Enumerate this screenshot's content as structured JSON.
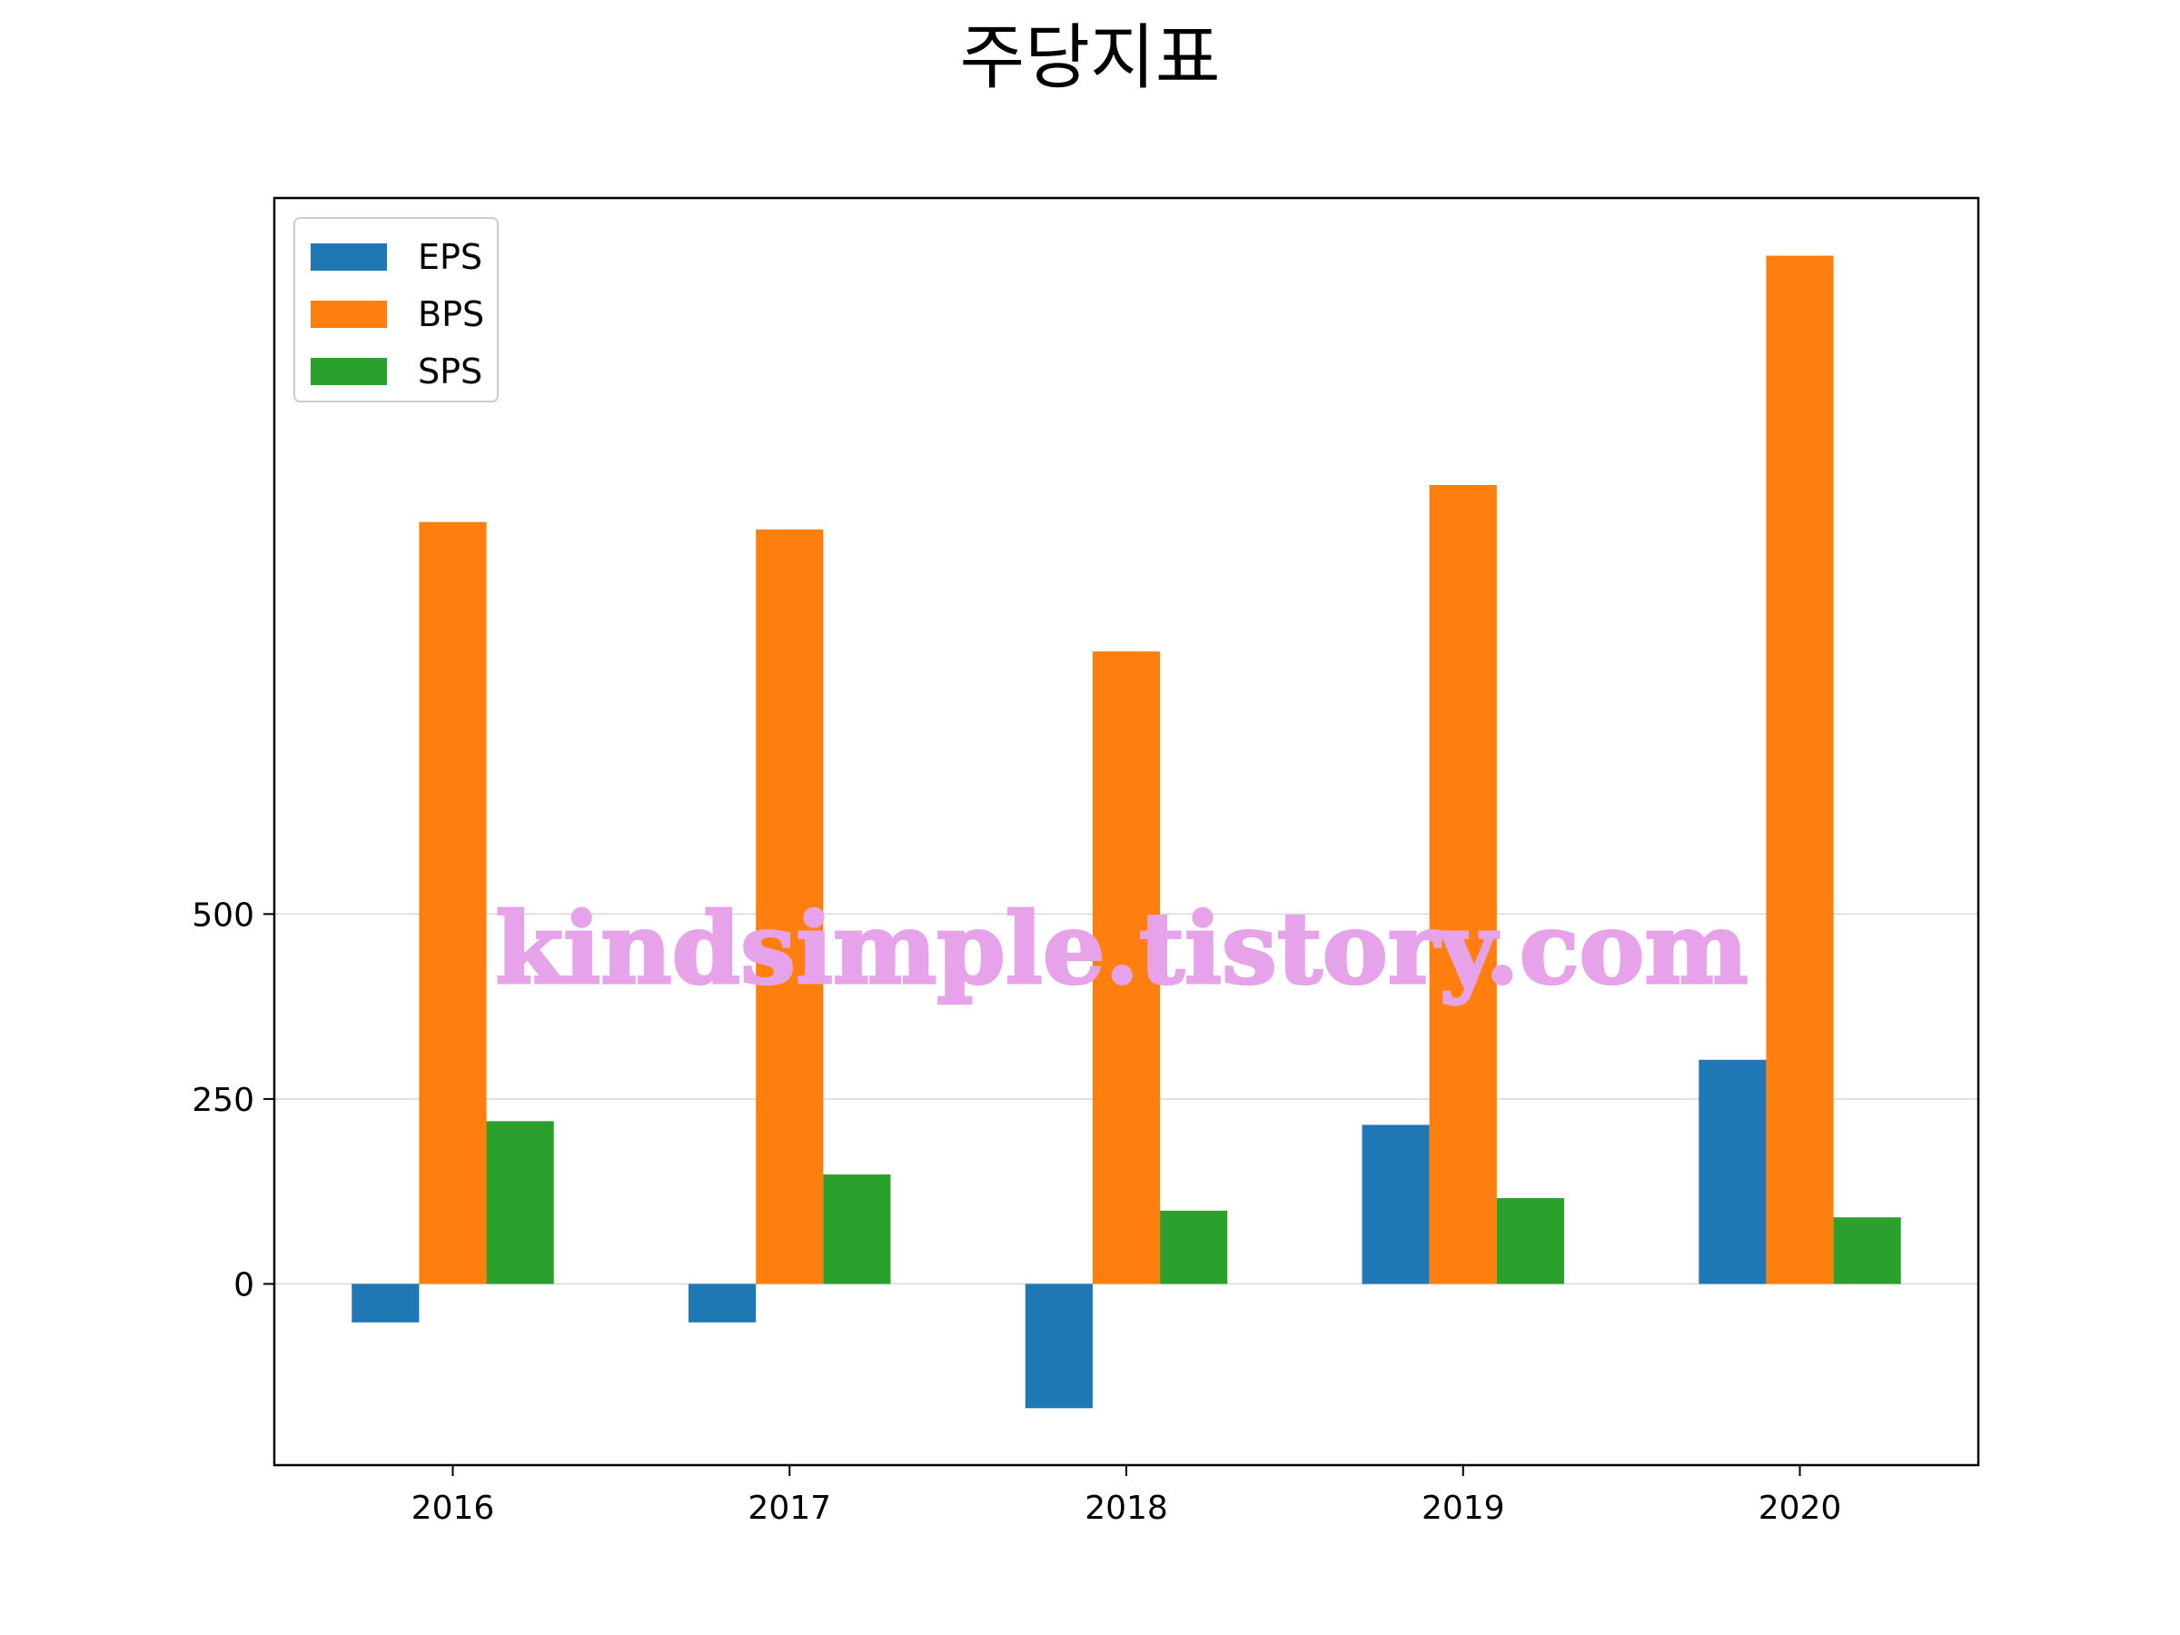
{
  "chart_data": {
    "type": "bar",
    "title": "주당지표",
    "xlabel": "",
    "ylabel": "",
    "categories": [
      "2016",
      "2017",
      "2018",
      "2019",
      "2020"
    ],
    "series": [
      {
        "name": "EPS",
        "color": "#1f77b4",
        "values": [
          -52,
          -52,
          -168,
          215,
          303
        ]
      },
      {
        "name": "BPS",
        "color": "#ff7f0e",
        "values": [
          1030,
          1020,
          855,
          1080,
          1390
        ]
      },
      {
        "name": "SPS",
        "color": "#2ca02c",
        "values": [
          220,
          148,
          99,
          116,
          90
        ]
      }
    ],
    "yticks": [
      0,
      250,
      500
    ],
    "ylim": [
      -245,
      1468
    ],
    "grid": "y",
    "legend_position": "top-left"
  },
  "watermark": "kindsimple.tistory.com"
}
